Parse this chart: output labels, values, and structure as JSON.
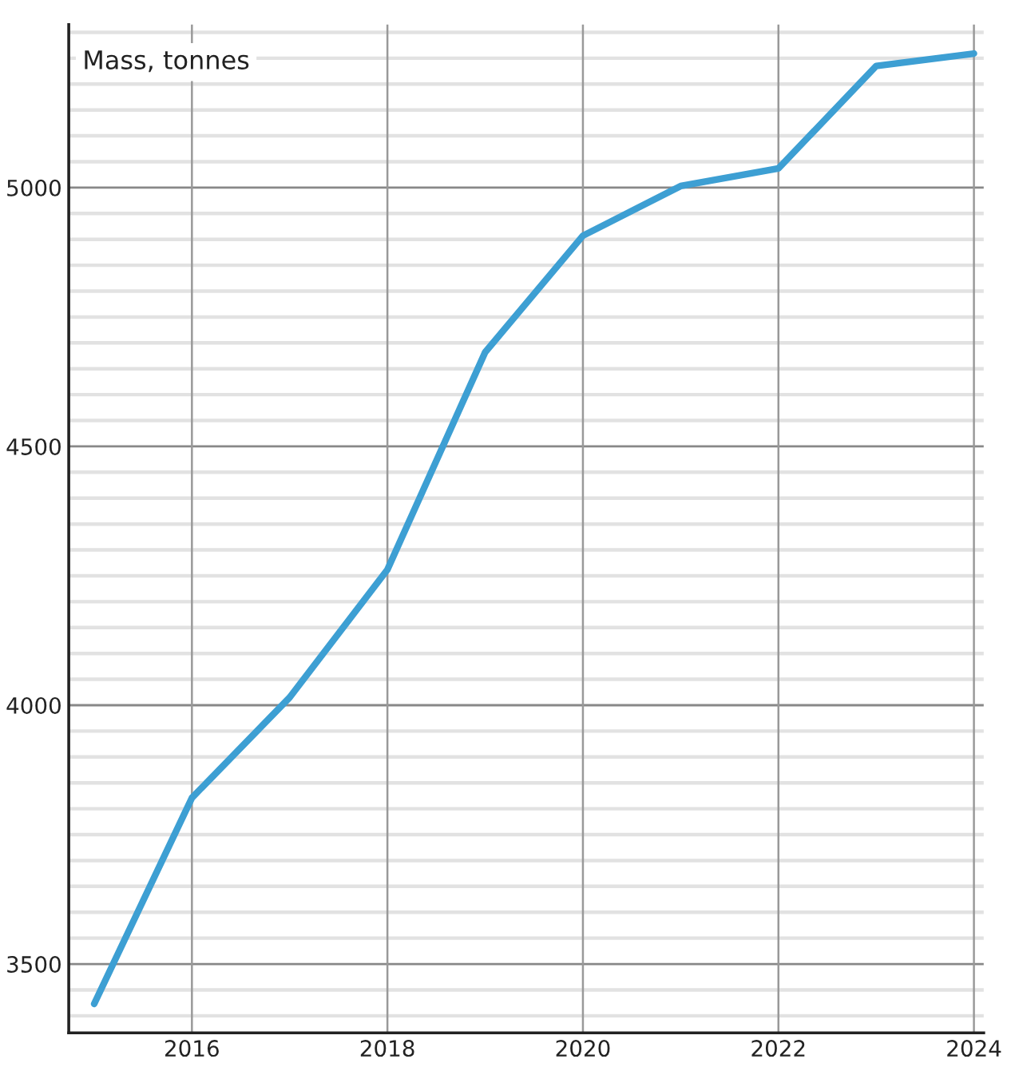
{
  "chart_data": {
    "type": "line",
    "ylabel": "Mass, tonnes",
    "x": [
      2015,
      2016,
      2017,
      2018,
      2019,
      2020,
      2021,
      2022,
      2023,
      2024
    ],
    "series": [
      {
        "color": "#3d9fd3",
        "values": [
          3423,
          3821,
          4015,
          4262,
          4682,
          4907,
          5003,
          5037,
          5235,
          5259
        ]
      }
    ],
    "xlim": [
      2014.74,
      2024.1
    ],
    "xticks": [
      2016,
      2018,
      2020,
      2022,
      2024
    ],
    "ylim": [
      3367,
      5315
    ],
    "yticks": [
      {
        "value": 3400,
        "label": null
      },
      {
        "value": 3450,
        "label": null
      },
      3500,
      {
        "value": 3550,
        "label": null
      },
      {
        "value": 3600,
        "label": null
      },
      {
        "value": 3650,
        "label": null
      },
      {
        "value": 3700,
        "label": null
      },
      {
        "value": 3750,
        "label": null
      },
      {
        "value": 3800,
        "label": null
      },
      {
        "value": 3850,
        "label": null
      },
      {
        "value": 3900,
        "label": null
      },
      {
        "value": 3950,
        "label": null
      },
      4000,
      {
        "value": 4050,
        "label": null
      },
      {
        "value": 4100,
        "label": null
      },
      {
        "value": 4150,
        "label": null
      },
      {
        "value": 4200,
        "label": null
      },
      {
        "value": 4250,
        "label": null
      },
      {
        "value": 4300,
        "label": null
      },
      {
        "value": 4350,
        "label": null
      },
      {
        "value": 4400,
        "label": null
      },
      {
        "value": 4450,
        "label": null
      },
      4500,
      {
        "value": 4550,
        "label": null
      },
      {
        "value": 4600,
        "label": null
      },
      {
        "value": 4650,
        "label": null
      },
      {
        "value": 4700,
        "label": null
      },
      {
        "value": 4750,
        "label": null
      },
      {
        "value": 4800,
        "label": null
      },
      {
        "value": 4850,
        "label": null
      },
      {
        "value": 4900,
        "label": null
      },
      {
        "value": 4950,
        "label": null
      },
      5000,
      {
        "value": 5050,
        "label": null
      },
      {
        "value": 5100,
        "label": null
      },
      {
        "value": 5150,
        "label": null
      },
      {
        "value": 5200,
        "label": null
      },
      {
        "value": 5250,
        "label": null
      },
      {
        "value": 5300,
        "label": null
      }
    ],
    "grid": true,
    "marker": "none",
    "line_style": "solid"
  }
}
